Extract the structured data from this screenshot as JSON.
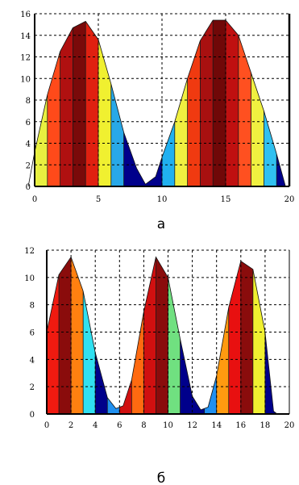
{
  "chart_data": [
    {
      "type": "area",
      "label": "а",
      "xlim": [
        0,
        20
      ],
      "ylim": [
        0,
        16
      ],
      "x_ticks": [
        "0",
        "5",
        "10",
        "15",
        "20"
      ],
      "y_ticks": [
        "0",
        "2",
        "4",
        "6",
        "8",
        "10",
        "12",
        "14",
        "16"
      ],
      "grid": true,
      "x": [
        -0.5,
        0,
        1,
        2,
        3,
        4,
        5,
        6,
        7,
        8,
        8.7,
        9.5,
        10,
        11,
        12,
        13,
        14,
        15,
        16,
        17,
        18,
        19,
        19.7
      ],
      "y": [
        0,
        3.2,
        8.5,
        12.5,
        14.7,
        15.3,
        13.6,
        9.5,
        5.0,
        1.7,
        0.2,
        0.9,
        2.7,
        6.0,
        10.0,
        13.5,
        15.4,
        15.4,
        14.0,
        10.5,
        7.0,
        3.0,
        0
      ],
      "bands": [
        {
          "from": 0,
          "to": 1,
          "color": "#e8f040"
        },
        {
          "from": 1,
          "to": 2,
          "color": "#ff4a1a"
        },
        {
          "from": 2,
          "to": 3,
          "color": "#b01010"
        },
        {
          "from": 3,
          "to": 4,
          "color": "#7a0a0a"
        },
        {
          "from": 4,
          "to": 5,
          "color": "#e02010"
        },
        {
          "from": 5,
          "to": 6,
          "color": "#f0f030"
        },
        {
          "from": 6,
          "to": 7,
          "color": "#28a8e8"
        },
        {
          "from": 7,
          "to": 10,
          "color": "#00008b"
        },
        {
          "from": 10,
          "to": 11,
          "color": "#20b0f0"
        },
        {
          "from": 11,
          "to": 12,
          "color": "#f0f040"
        },
        {
          "from": 12,
          "to": 13,
          "color": "#f03a10"
        },
        {
          "from": 13,
          "to": 14,
          "color": "#a81010"
        },
        {
          "from": 14,
          "to": 15,
          "color": "#700808"
        },
        {
          "from": 15,
          "to": 16,
          "color": "#c01010"
        },
        {
          "from": 16,
          "to": 17,
          "color": "#ff5020"
        },
        {
          "from": 17,
          "to": 18,
          "color": "#f0f040"
        },
        {
          "from": 18,
          "to": 19,
          "color": "#30c0f0"
        },
        {
          "from": 19,
          "to": 20,
          "color": "#00008b"
        }
      ]
    },
    {
      "type": "area",
      "label": "б",
      "xlim": [
        0,
        20
      ],
      "ylim": [
        0,
        12
      ],
      "x_ticks": [
        "0",
        "2",
        "4",
        "6",
        "8",
        "10",
        "12",
        "14",
        "16",
        "18",
        "20"
      ],
      "y_ticks": [
        "0",
        "2",
        "4",
        "6",
        "8",
        "10",
        "12"
      ],
      "grid": true,
      "x": [
        0,
        1,
        2,
        3,
        4,
        5,
        5.7,
        6.3,
        7,
        8,
        9,
        10,
        11,
        12,
        12.7,
        13.3,
        14,
        15,
        16,
        17,
        18,
        18.7,
        19
      ],
      "y": [
        6.0,
        10.2,
        11.5,
        9.0,
        4.5,
        1.2,
        0.4,
        0.6,
        2.5,
        7.5,
        11.5,
        10.0,
        5.5,
        1.3,
        0.3,
        0.5,
        2.8,
        7.8,
        11.2,
        10.6,
        6.0,
        0.2,
        0
      ],
      "bands": [
        {
          "from": 0,
          "to": 1,
          "color": "#f01a10"
        },
        {
          "from": 1,
          "to": 2,
          "color": "#8a0c0c"
        },
        {
          "from": 2,
          "to": 3,
          "color": "#ff8010"
        },
        {
          "from": 3,
          "to": 4,
          "color": "#30e0f0"
        },
        {
          "from": 4,
          "to": 5,
          "color": "#00008b"
        },
        {
          "from": 5,
          "to": 6,
          "color": "#2090f0"
        },
        {
          "from": 6,
          "to": 7,
          "color": "#d01010"
        },
        {
          "from": 7,
          "to": 8,
          "color": "#ff6a10"
        },
        {
          "from": 8,
          "to": 9,
          "color": "#d01010"
        },
        {
          "from": 9,
          "to": 10,
          "color": "#8a0c0c"
        },
        {
          "from": 10,
          "to": 11,
          "color": "#70e080"
        },
        {
          "from": 11,
          "to": 13,
          "color": "#00008b"
        },
        {
          "from": 13,
          "to": 14,
          "color": "#2090f0"
        },
        {
          "from": 14,
          "to": 15,
          "color": "#ff9a10"
        },
        {
          "from": 15,
          "to": 16,
          "color": "#e81010"
        },
        {
          "from": 16,
          "to": 17,
          "color": "#8a0c0c"
        },
        {
          "from": 17,
          "to": 18,
          "color": "#f0f030"
        },
        {
          "from": 18,
          "to": 19,
          "color": "#00008b"
        }
      ]
    }
  ]
}
